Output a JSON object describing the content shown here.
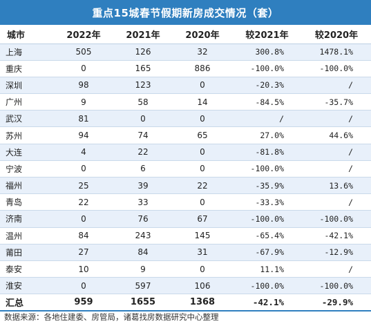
{
  "title": "重点15城春节假期新房成交情况（套）",
  "headers": [
    "城市",
    "2022年",
    "2021年",
    "2020年",
    "较2021年",
    "较2020年"
  ],
  "rows": [
    [
      "上海",
      "505",
      "126",
      "32",
      "300.8%",
      "1478.1%"
    ],
    [
      "重庆",
      "0",
      "165",
      "886",
      "-100.0%",
      "-100.0%"
    ],
    [
      "深圳",
      "98",
      "123",
      "0",
      "-20.3%",
      "/"
    ],
    [
      "广州",
      "9",
      "58",
      "14",
      "-84.5%",
      "-35.7%"
    ],
    [
      "武汉",
      "81",
      "0",
      "0",
      "/",
      "/"
    ],
    [
      "苏州",
      "94",
      "74",
      "65",
      "27.0%",
      "44.6%"
    ],
    [
      "大连",
      "4",
      "22",
      "0",
      "-81.8%",
      "/"
    ],
    [
      "宁波",
      "0",
      "6",
      "0",
      "-100.0%",
      "/"
    ],
    [
      "福州",
      "25",
      "39",
      "22",
      "-35.9%",
      "13.6%"
    ],
    [
      "青岛",
      "22",
      "33",
      "0",
      "-33.3%",
      "/"
    ],
    [
      "济南",
      "0",
      "76",
      "67",
      "-100.0%",
      "-100.0%"
    ],
    [
      "温州",
      "84",
      "243",
      "145",
      "-65.4%",
      "-42.1%"
    ],
    [
      "莆田",
      "27",
      "84",
      "31",
      "-67.9%",
      "-12.9%"
    ],
    [
      "泰安",
      "10",
      "9",
      "0",
      "11.1%",
      "/"
    ],
    [
      "淮安",
      "0",
      "597",
      "106",
      "-100.0%",
      "-100.0%"
    ]
  ],
  "total": [
    "汇总",
    "959",
    "1655",
    "1368",
    "-42.1%",
    "-29.9%"
  ],
  "source": "数据来源：各地住建委、房管局，诸葛找房数据研究中心整理",
  "colors": {
    "title_bg": "#2f7fbf",
    "stripe": "#e8f0fa",
    "rule": "#c9d9ea"
  },
  "chart_data": {
    "type": "table",
    "title": "重点15城春节假期新房成交情况（套）",
    "columns": [
      "城市",
      "2022年",
      "2021年",
      "2020年",
      "较2021年",
      "较2020年"
    ],
    "rows": [
      [
        "上海",
        505,
        126,
        32,
        "300.8%",
        "1478.1%"
      ],
      [
        "重庆",
        0,
        165,
        886,
        "-100.0%",
        "-100.0%"
      ],
      [
        "深圳",
        98,
        123,
        0,
        "-20.3%",
        "/"
      ],
      [
        "广州",
        9,
        58,
        14,
        "-84.5%",
        "-35.7%"
      ],
      [
        "武汉",
        81,
        0,
        0,
        "/",
        "/"
      ],
      [
        "苏州",
        94,
        74,
        65,
        "27.0%",
        "44.6%"
      ],
      [
        "大连",
        4,
        22,
        0,
        "-81.8%",
        "/"
      ],
      [
        "宁波",
        0,
        6,
        0,
        "-100.0%",
        "/"
      ],
      [
        "福州",
        25,
        39,
        22,
        "-35.9%",
        "13.6%"
      ],
      [
        "青岛",
        22,
        33,
        0,
        "-33.3%",
        "/"
      ],
      [
        "济南",
        0,
        76,
        67,
        "-100.0%",
        "-100.0%"
      ],
      [
        "温州",
        84,
        243,
        145,
        "-65.4%",
        "-42.1%"
      ],
      [
        "莆田",
        27,
        84,
        31,
        "-67.9%",
        "-12.9%"
      ],
      [
        "泰安",
        10,
        9,
        0,
        "11.1%",
        "/"
      ],
      [
        "淮安",
        0,
        597,
        106,
        "-100.0%",
        "-100.0%"
      ]
    ],
    "total": [
      "汇总",
      959,
      1655,
      1368,
      "-42.1%",
      "-29.9%"
    ]
  }
}
